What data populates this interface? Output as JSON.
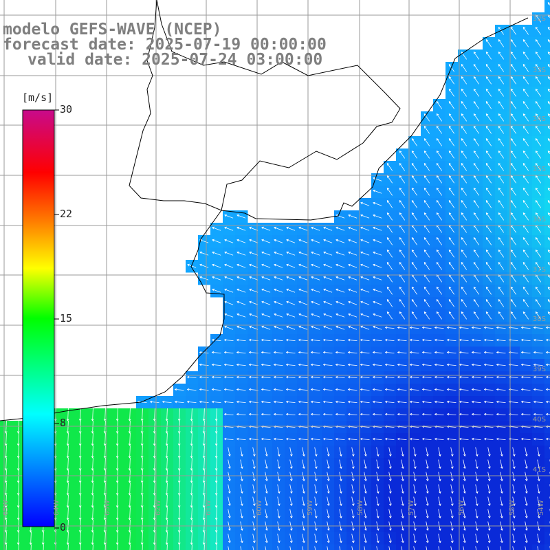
{
  "title": {
    "line1": "modelo GEFS-WAVE (NCEP)",
    "line2": "forecast date: 2025-07-19 00:00:00",
    "line3": "valid date: 2025-07-24 03:00:00"
  },
  "colorbar": {
    "unit": "[m/s]",
    "ticks": [
      "30",
      "22",
      "15",
      "8",
      "0"
    ],
    "stops": [
      "#0000ff",
      "#00ffff",
      "#00ff00",
      "#ffff00",
      "#ff8000",
      "#ff0000",
      "#c80a8c"
    ]
  },
  "map": {
    "lat_labels": [
      "32S",
      "33S",
      "34S",
      "35S",
      "36S",
      "37S",
      "38S",
      "39S",
      "40S",
      "41S"
    ],
    "lon_labels": [
      "65W",
      "64W",
      "63W",
      "62W",
      "61W",
      "60W",
      "59W",
      "58W",
      "57W",
      "56W",
      "55W",
      "54W"
    ],
    "colors": {
      "land": "#ffffff",
      "coast": "#000000",
      "grid": "#9a9a9a"
    }
  }
}
